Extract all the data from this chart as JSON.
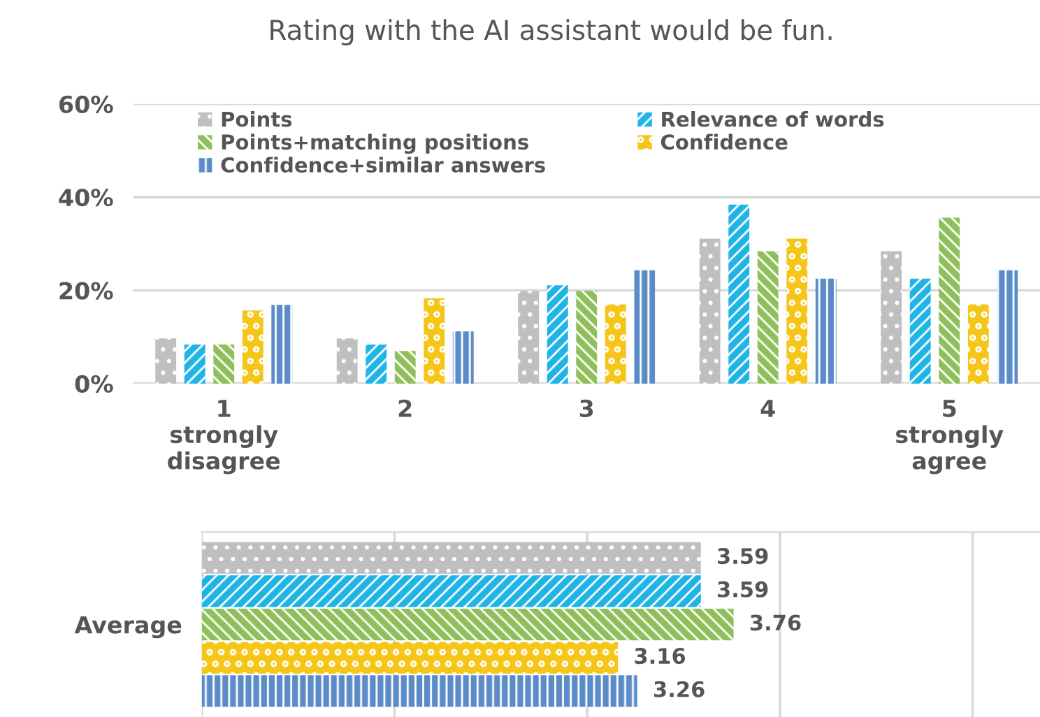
{
  "chart_data": [
    {
      "type": "bar",
      "title": "Rating with the AI assistant would be fun.",
      "categories": [
        "1\nstrongly\ndisagree",
        "2",
        "3",
        "4",
        "5\nstrongly\nagree"
      ],
      "series": [
        {
          "name": "Points",
          "color": "#bfbfbf",
          "values": [
            9.7,
            9.7,
            19.9,
            31.1,
            28.4
          ]
        },
        {
          "name": "Relevance of words",
          "color": "#1fb4e6",
          "values": [
            8.4,
            8.4,
            21.1,
            38.4,
            22.5
          ]
        },
        {
          "name": "Points+matching positions",
          "color": "#8fbf5a",
          "values": [
            8.4,
            7.0,
            19.9,
            28.4,
            35.6
          ]
        },
        {
          "name": "Confidence",
          "color": "#f5c518",
          "values": [
            15.7,
            18.3,
            17.0,
            31.1,
            17.0
          ]
        },
        {
          "name": "Confidence+similar answers",
          "color": "#5b8cc8",
          "values": [
            16.9,
            11.2,
            24.3,
            22.5,
            24.3
          ]
        }
      ],
      "ylim": [
        0,
        60
      ],
      "yticks": [
        {
          "value": 0,
          "label": "0%"
        },
        {
          "value": 20,
          "label": "20%"
        },
        {
          "value": 40,
          "label": "40%"
        },
        {
          "value": 60,
          "label": "60%"
        }
      ],
      "grid": "y",
      "legend": "top"
    },
    {
      "type": "bar",
      "orientation": "horizontal",
      "categories": [
        "Average"
      ],
      "series": [
        {
          "color": "#bfbfbf",
          "values": [
            3.59
          ]
        },
        {
          "color": "#1fb4e6",
          "values": [
            3.59
          ]
        },
        {
          "color": "#8fbf5a",
          "values": [
            3.76
          ]
        },
        {
          "color": "#f5c518",
          "values": [
            3.16
          ]
        },
        {
          "color": "#5b8cc8",
          "values": [
            3.26
          ]
        }
      ],
      "xlim": [
        1,
        5.35
      ],
      "xticks": [
        {
          "value": 1,
          "label": null
        },
        {
          "value": 2,
          "label": null
        },
        {
          "value": 3,
          "label": null
        },
        {
          "value": 4,
          "label": null
        },
        {
          "value": 5,
          "label": null
        }
      ],
      "grid": "x",
      "data_labels": true,
      "tick_labels": "y"
    }
  ]
}
